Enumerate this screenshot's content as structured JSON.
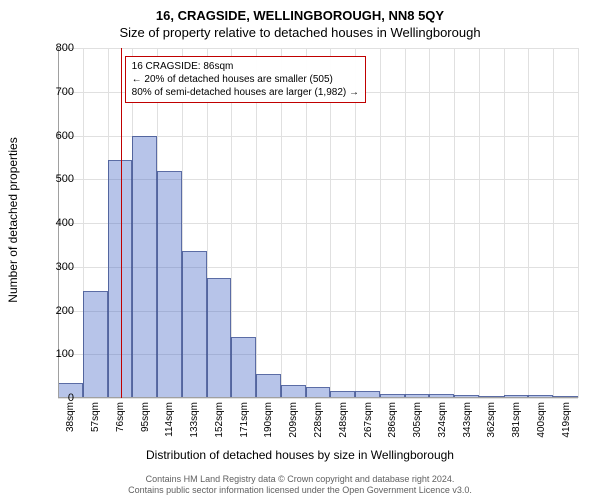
{
  "title_main": "16, CRAGSIDE, WELLINGBOROUGH, NN8 5QY",
  "title_sub": "Size of property relative to detached houses in Wellingborough",
  "ylabel": "Number of detached properties",
  "xlabel": "Distribution of detached houses by size in Wellingborough",
  "chart": {
    "type": "histogram",
    "ylim": [
      0,
      800
    ],
    "ytick_step": 100,
    "bar_color": "rgba(74,107,200,0.4)",
    "bar_border": "rgba(30,50,120,0.6)",
    "grid_color": "#e0e0e0",
    "background_color": "#ffffff",
    "marker_color": "#c00000",
    "yticks": [
      0,
      100,
      200,
      300,
      400,
      500,
      600,
      700,
      800
    ],
    "xticks": [
      "38sqm",
      "57sqm",
      "76sqm",
      "95sqm",
      "114sqm",
      "133sqm",
      "152sqm",
      "171sqm",
      "190sqm",
      "209sqm",
      "228sqm",
      "248sqm",
      "267sqm",
      "286sqm",
      "305sqm",
      "324sqm",
      "343sqm",
      "362sqm",
      "381sqm",
      "400sqm",
      "419sqm"
    ],
    "values": [
      35,
      245,
      545,
      600,
      520,
      335,
      275,
      140,
      55,
      30,
      25,
      15,
      15,
      10,
      10,
      10,
      8,
      0,
      8,
      8,
      3
    ],
    "marker_index": 2.53
  },
  "annotation": {
    "line1": "16 CRAGSIDE: 86sqm",
    "line2": "← 20% of detached houses are smaller (505)",
    "line3": "80% of semi-detached houses are larger (1,982) →"
  },
  "footer": {
    "line1": "Contains HM Land Registry data © Crown copyright and database right 2024.",
    "line2": "Contains public sector information licensed under the Open Government Licence v3.0."
  }
}
